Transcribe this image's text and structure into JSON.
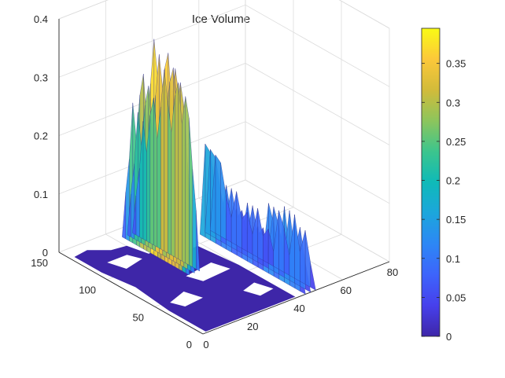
{
  "chart_data": {
    "type": "surface3d",
    "title": "Ice Volume",
    "xlabel": "",
    "ylabel": "",
    "zlabel": "",
    "xlim": [
      0,
      80
    ],
    "ylim": [
      0,
      150
    ],
    "zlim": [
      0,
      0.4
    ],
    "x_ticks": [
      0,
      20,
      40,
      60,
      80
    ],
    "y_ticks": [
      0,
      50,
      100,
      150
    ],
    "z_ticks": [
      0,
      0.1,
      0.2,
      0.3,
      0.4
    ],
    "x_tick_labels": [
      "0",
      "20",
      "40",
      "60",
      "80"
    ],
    "y_tick_labels": [
      "0",
      "50",
      "100",
      "150"
    ],
    "z_tick_labels": [
      "0",
      "0.1",
      "0.2",
      "0.3",
      "0.4"
    ],
    "grid": true,
    "colormap": "parula",
    "colorbar": {
      "position": "right",
      "range": [
        0,
        0.395
      ],
      "ticks": [
        0,
        0.05,
        0.1,
        0.15,
        0.2,
        0.25,
        0.3,
        0.35
      ],
      "tick_labels": [
        "0",
        "0.05",
        "0.1",
        "0.15",
        "0.2",
        "0.25",
        "0.3",
        "0.35"
      ]
    },
    "colors": {
      "low": "#3e26a8",
      "mid": "#15b4c9",
      "high": "#f9fb15",
      "axis": "#262626",
      "grid": "#dcdcdc"
    },
    "ridge_profiles": [
      {
        "x": 23,
        "y_range": [
          70,
          140
        ],
        "z": [
          0.0,
          0.12,
          0.2,
          0.3,
          0.34,
          0.28,
          0.36,
          0.33,
          0.25,
          0.31,
          0.37,
          0.29,
          0.22,
          0.3,
          0.26,
          0.18,
          0.24,
          0.14,
          0.08,
          0.0
        ]
      },
      {
        "x": 44,
        "y_range": [
          0,
          110
        ],
        "z": [
          0.0,
          0.05,
          0.11,
          0.06,
          0.13,
          0.04,
          0.09,
          0.12,
          0.03,
          0.07,
          0.05,
          0.1,
          0.04,
          0.08,
          0.06,
          0.11,
          0.05,
          0.09,
          0.15,
          0.16,
          0.0
        ]
      }
    ],
    "ice_free_region_mask": "zero-valued cells shown flat at z=0 over much of the lower-left domain"
  }
}
